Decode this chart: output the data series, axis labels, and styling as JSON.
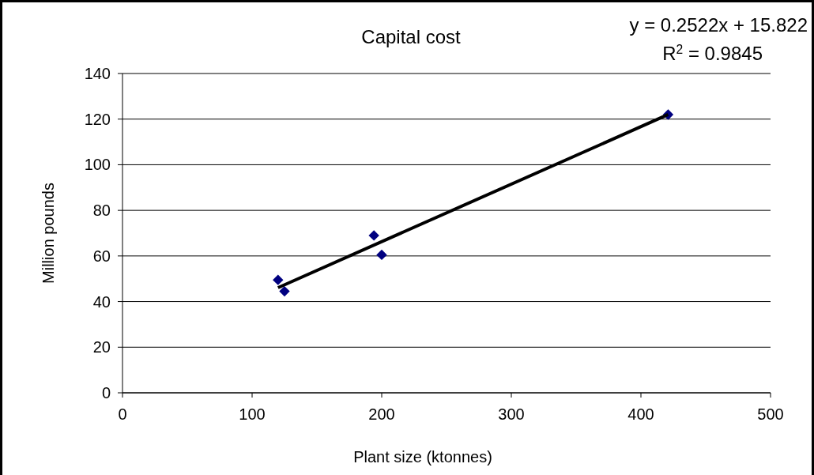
{
  "chart_data": {
    "type": "scatter",
    "title": "Capital cost",
    "xlabel": "Plant size (ktonnes)",
    "ylabel": "Million pounds",
    "annotations": [
      "y = 0.2522x + 15.822",
      "R$^{2}$ = 0.9845"
    ],
    "series": [
      {
        "color": "#000080",
        "marker": "diamond",
        "x": [
          120,
          125,
          194,
          200,
          421
        ],
        "values": [
          49.5,
          44.5,
          69,
          60.5,
          122
        ]
      },
      {
        "type": "line",
        "color": "#000000",
        "marker": "none",
        "line_style": "solid",
        "x": [
          120,
          421
        ],
        "values": [
          46.1,
          122
        ]
      }
    ],
    "xlim": [
      0,
      500
    ],
    "xticks": [
      0,
      100,
      200,
      300,
      400,
      500
    ],
    "ylim": [
      0,
      140
    ],
    "yticks": [
      0,
      20,
      40,
      60,
      80,
      100,
      120,
      140
    ],
    "grid": "y"
  }
}
